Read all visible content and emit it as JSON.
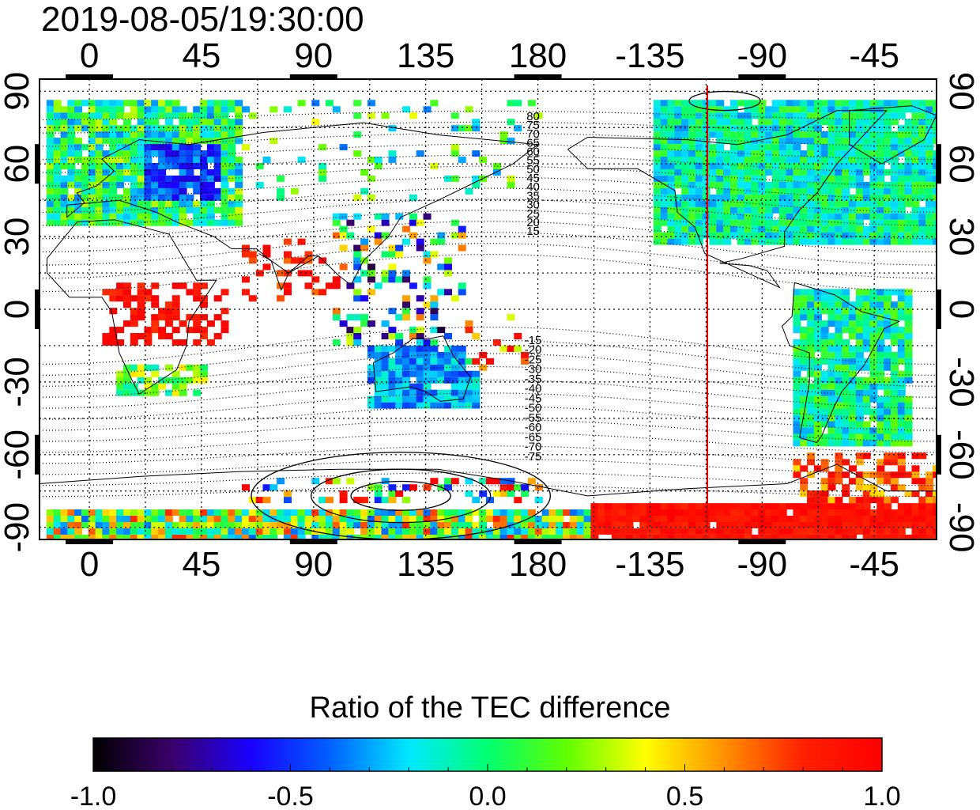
{
  "title": "2019-08-05/19:30:00",
  "map": {
    "lon_ticks_top": [
      "0",
      "45",
      "90",
      "135",
      "180",
      "-135",
      "-90",
      "-45"
    ],
    "lon_ticks_bottom": [
      "0",
      "45",
      "90",
      "135",
      "180",
      "-135",
      "-90",
      "-45"
    ],
    "lat_ticks_left": [
      "90",
      "60",
      "30",
      "0",
      "-30",
      "-60",
      "-90"
    ],
    "lat_ticks_right": [
      "90",
      "60",
      "30",
      "0",
      "-30",
      "-60",
      "-90"
    ],
    "lon_tick_values": [
      0,
      45,
      90,
      135,
      180,
      -135,
      -90,
      -45
    ],
    "lat_tick_values": [
      90,
      60,
      30,
      0,
      -30,
      -60,
      -90
    ],
    "lon_range": [
      -20,
      340
    ],
    "lat_range": [
      -95,
      95
    ],
    "grid": "dotted",
    "terminator_line_longitude": -112,
    "terminator_line_color": "#dd0000",
    "contour_labels_north": [
      "80",
      "75",
      "70",
      "65",
      "60",
      "55",
      "50",
      "45",
      "40",
      "35",
      "30",
      "25",
      "20",
      "15"
    ],
    "contour_labels_south": [
      "-15",
      "-20",
      "-25",
      "-30",
      "-35",
      "-40",
      "-45",
      "-50",
      "-55",
      "-60",
      "-65",
      "-70",
      "-75"
    ]
  },
  "colorbar": {
    "title": "Ratio of the TEC difference",
    "tick_labels": [
      "-1.0",
      "-0.5",
      "0.0",
      "0.5",
      "1.0"
    ],
    "range": [
      -1.0,
      1.0
    ],
    "colors": [
      "#000000",
      "#3a006a",
      "#1a00ff",
      "#0060ff",
      "#00e8ff",
      "#00ff70",
      "#60ff00",
      "#ffff00",
      "#ff9000",
      "#ff2000",
      "#ff0000"
    ]
  }
}
